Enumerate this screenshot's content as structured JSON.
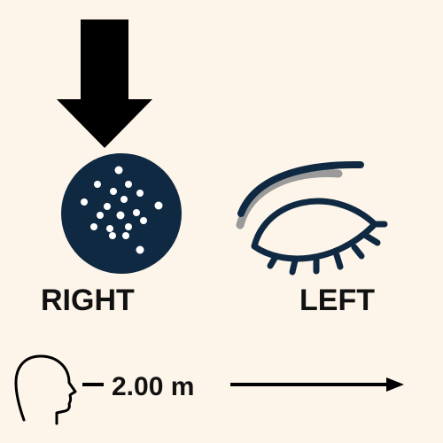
{
  "colors": {
    "background": "#fdf5e9",
    "navy": "#0f2942",
    "black": "#000000",
    "gray": "#9a9a9a",
    "dot": "#ffffff"
  },
  "icons": {
    "pointer": "down-arrow-icon",
    "right_eye": "dotted-circle-eye-icon",
    "left_eye": "closed-eye-icon",
    "person": "head-profile-icon",
    "distance_arrow": "right-arrow-icon"
  },
  "labels": {
    "right": "RIGHT",
    "left": "LEFT"
  },
  "distance": {
    "text": "2.00 m",
    "value": 2.0,
    "unit": "m"
  }
}
